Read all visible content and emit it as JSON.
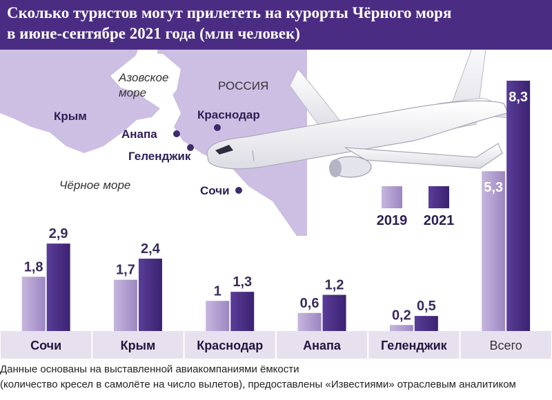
{
  "title_line1": "Сколько туристов могут прилететь на курорты Чёрного моря",
  "title_line2": "в июне-сентябре 2021 года (млн человек)",
  "map": {
    "labels": {
      "azov_line1": "Азовское",
      "azov_line2": "море",
      "russia": "РОССИЯ",
      "crimea": "Крым",
      "krasnodar": "Краснодар",
      "anapa": "Анапа",
      "gelendzhik": "Геленджик",
      "black_sea": "Чёрное море",
      "sochi": "Сочи"
    }
  },
  "legend": {
    "y2019": "2019",
    "y2021": "2021"
  },
  "colors": {
    "header": "#4b2c83",
    "bar2019": "#a58fc6",
    "bar2021": "#4a2d86",
    "map_land": "#cdbfe3",
    "map_sea": "#ffffff",
    "label_band": "#e7e1ef"
  },
  "chart_data": {
    "type": "bar",
    "title": "Сколько туристов могут прилететь на курорты Чёрного моря в июне-сентябре 2021 года (млн человек)",
    "categories": [
      "Сочи",
      "Крым",
      "Краснодар",
      "Анапа",
      "Геленджик",
      "Всего"
    ],
    "series": [
      {
        "name": "2019",
        "values": [
          1.8,
          1.7,
          1,
          0.6,
          0.2,
          5.3
        ],
        "labels": [
          "1,8",
          "1,7",
          "1",
          "0,6",
          "0,2",
          "5,3"
        ]
      },
      {
        "name": "2021",
        "values": [
          2.9,
          2.4,
          1.3,
          1.2,
          0.5,
          8.3
        ],
        "labels": [
          "2,9",
          "2,4",
          "1,3",
          "1,2",
          "0,5",
          "8,3"
        ]
      }
    ],
    "ylim": [
      0,
      8.3
    ],
    "xlabel": "",
    "ylabel": "млн человек",
    "legend": "center-right"
  },
  "footer": {
    "line1": "Данные основаны на выставленной авиакомпаниями ёмкости",
    "line2": "(количество кресел в самолёте на число вылетов), предоставлены  «Известиями» отраслевым аналитиком"
  }
}
